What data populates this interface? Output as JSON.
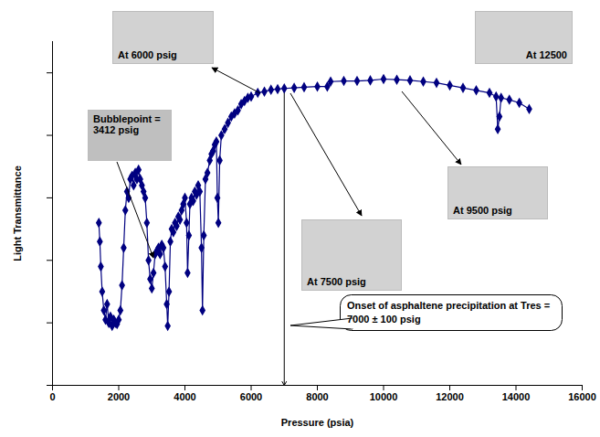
{
  "chart_data": {
    "type": "line",
    "x_label": "Pressure (psia)",
    "y_label": "Light Transmittance",
    "xlim": [
      0,
      16000
    ],
    "xticks": [
      0,
      2000,
      4000,
      6000,
      8000,
      10000,
      12000,
      14000,
      16000
    ],
    "ylim": [
      0,
      5.5
    ],
    "yticks": [
      0,
      1,
      2,
      3,
      4,
      5
    ],
    "tick_labels": "x",
    "color": "#000080",
    "marker": "diamond",
    "x": [
      1400,
      1430,
      1460,
      1500,
      1550,
      1600,
      1650,
      1700,
      1750,
      1800,
      1850,
      1900,
      1950,
      2000,
      2050,
      2100,
      2150,
      2200,
      2250,
      2300,
      2350,
      2400,
      2450,
      2500,
      2550,
      2600,
      2650,
      2700,
      2750,
      2800,
      2850,
      2900,
      2950,
      3000,
      3050,
      3100,
      3150,
      3200,
      3250,
      3300,
      3350,
      3400,
      3450,
      3480,
      3520,
      3560,
      3600,
      3650,
      3700,
      3750,
      3800,
      3850,
      3900,
      3950,
      4000,
      4050,
      4080,
      4120,
      4150,
      4200,
      4250,
      4300,
      4350,
      4400,
      4450,
      4500,
      4530,
      4570,
      4620,
      4680,
      4750,
      4800,
      4850,
      4900,
      4950,
      4980,
      5010,
      5050,
      5100,
      5200,
      5300,
      5400,
      5500,
      5600,
      5700,
      5800,
      5900,
      6000,
      6200,
      6400,
      6600,
      6800,
      7000,
      7300,
      7600,
      8000,
      8300,
      8400,
      8800,
      9200,
      9600,
      10000,
      10400,
      10800,
      11200,
      11600,
      12000,
      12400,
      12800,
      13200,
      13400,
      13450,
      13500,
      13550,
      13800,
      14100,
      14400
    ],
    "values": [
      2.6,
      2.3,
      1.9,
      1.5,
      1.2,
      1.05,
      1.3,
      1.0,
      1.1,
      0.95,
      1.05,
      1.0,
      0.98,
      1.05,
      1.2,
      1.6,
      2.2,
      2.8,
      3.1,
      3.0,
      3.3,
      3.35,
      3.2,
      3.4,
      3.3,
      3.45,
      3.3,
      3.2,
      3.1,
      3.0,
      2.6,
      2.0,
      1.7,
      1.55,
      1.8,
      2.1,
      2.15,
      2.2,
      2.1,
      2.25,
      2.2,
      1.9,
      1.3,
      0.95,
      1.5,
      2.3,
      2.5,
      2.45,
      2.6,
      2.55,
      2.7,
      2.65,
      2.8,
      2.9,
      3.0,
      2.6,
      1.8,
      2.4,
      2.9,
      3.0,
      2.95,
      3.1,
      3.05,
      3.2,
      3.1,
      2.2,
      1.2,
      2.4,
      3.3,
      3.4,
      3.6,
      3.7,
      3.75,
      3.85,
      3.9,
      3.0,
      2.6,
      3.6,
      4.0,
      4.1,
      4.2,
      4.3,
      4.35,
      4.4,
      4.5,
      4.55,
      4.6,
      4.62,
      4.68,
      4.7,
      4.73,
      4.74,
      4.75,
      4.76,
      4.77,
      4.78,
      4.78,
      4.86,
      4.87,
      4.87,
      4.88,
      4.9,
      4.89,
      4.88,
      4.86,
      4.84,
      4.8,
      4.76,
      4.72,
      4.68,
      4.62,
      4.1,
      4.3,
      4.6,
      4.57,
      4.52,
      4.42
    ],
    "onset_pressure": 7000,
    "annotations": [
      {
        "text": "Bubblepoint = 3412 psig"
      },
      {
        "text": "At 6000 psig"
      },
      {
        "text": "At 12500"
      },
      {
        "text": "At 7500 psig"
      },
      {
        "text": "At 9500 psig"
      },
      {
        "text": "Onset of asphaltene precipitation at Tres = 7000 ± 100 psig"
      }
    ]
  }
}
